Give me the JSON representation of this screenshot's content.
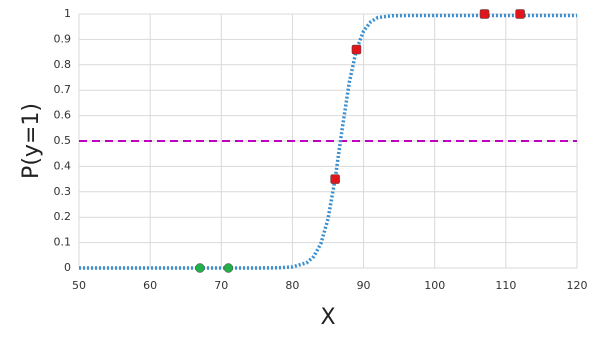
{
  "chart_data": {
    "type": "scatter",
    "x_label": "X",
    "y_label": "P(y=1)",
    "xlim": [
      50,
      120
    ],
    "xticks": [
      50,
      60,
      70,
      80,
      90,
      100,
      110,
      120
    ],
    "ylim": [
      0,
      1
    ],
    "yticks": [
      0,
      0.1,
      0.2,
      0.3,
      0.4,
      0.5,
      0.6,
      0.7,
      0.8,
      0.9,
      1
    ],
    "grid": true,
    "threshold": {
      "value": 0.5,
      "color": "#c000c0",
      "style": "dashed"
    },
    "series": [
      {
        "type": "line",
        "color": "#3a8fd0",
        "style": "dotted",
        "x": [
          50,
          60,
          70,
          75,
          78,
          80,
          82,
          83,
          84,
          85,
          86,
          87,
          88,
          89,
          90,
          91,
          92,
          94,
          96,
          100,
          110,
          120
        ],
        "values": [
          0,
          0,
          0,
          0.0001,
          0.0008,
          0.0041,
          0.0206,
          0.0452,
          0.0962,
          0.193,
          0.351,
          0.549,
          0.732,
          0.86,
          0.933,
          0.969,
          0.986,
          0.993,
          0.994,
          0.994,
          0.994,
          0.994
        ]
      },
      {
        "type": "scatter",
        "marker": "circle",
        "color": "#22b04b",
        "x": [
          67,
          71
        ],
        "values": [
          0,
          0
        ]
      },
      {
        "type": "scatter",
        "marker": "square",
        "color": "#e0161c",
        "x": [
          86,
          89,
          107,
          112
        ],
        "values": [
          0.35,
          0.86,
          1,
          1
        ]
      }
    ]
  }
}
